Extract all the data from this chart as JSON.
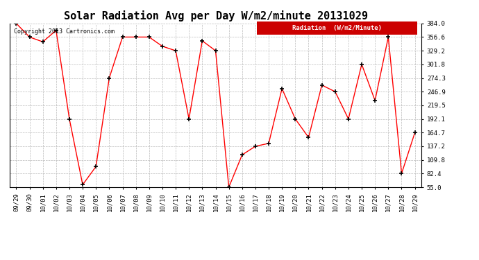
{
  "title": "Solar Radiation Avg per Day W/m2/minute 20131029",
  "copyright": "Copyright 2013 Cartronics.com",
  "legend_label": "Radiation  (W/m2/Minute)",
  "dates": [
    "09/29",
    "09/30",
    "10/01",
    "10/02",
    "10/03",
    "10/04",
    "10/05",
    "10/06",
    "10/07",
    "10/08",
    "10/09",
    "10/10",
    "10/11",
    "10/12",
    "10/13",
    "10/14",
    "10/15",
    "10/16",
    "10/17",
    "10/18",
    "10/19",
    "10/20",
    "10/21",
    "10/22",
    "10/23",
    "10/24",
    "10/25",
    "10/26",
    "10/27",
    "10/28",
    "10/29"
  ],
  "values": [
    384.0,
    356.6,
    347.0,
    370.0,
    192.1,
    60.0,
    96.5,
    274.3,
    356.6,
    356.6,
    356.6,
    338.0,
    329.2,
    192.1,
    349.0,
    329.2,
    55.0,
    120.0,
    137.2,
    143.0,
    253.0,
    192.1,
    155.0,
    260.0,
    246.9,
    192.1,
    301.8,
    229.0,
    356.6,
    82.4,
    164.7
  ],
  "ylim": [
    55.0,
    384.0
  ],
  "yticks": [
    55.0,
    82.4,
    109.8,
    137.2,
    164.7,
    192.1,
    219.5,
    246.9,
    274.3,
    301.8,
    329.2,
    356.6,
    384.0
  ],
  "line_color": "red",
  "marker_color": "black",
  "bg_color": "#ffffff",
  "grid_color": "#bbbbbb",
  "title_fontsize": 11,
  "legend_bg": "#cc0000",
  "legend_text_color": "#ffffff",
  "figwidth": 6.9,
  "figheight": 3.75,
  "dpi": 100
}
